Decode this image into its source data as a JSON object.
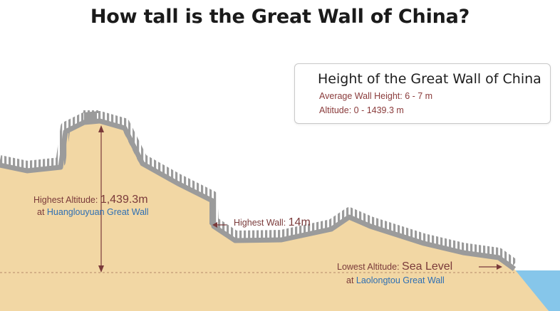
{
  "title": "How tall is the Great Wall of China?",
  "info_box": {
    "title": "Height of the Great Wall of China",
    "average_wall_height": "Average Wall Height: 6 - 7 m",
    "altitude_range": "Altitude: 0 - 1439.3 m"
  },
  "labels": {
    "highest_altitude": {
      "prefix": "Highest Altitude: ",
      "value": "1,439.3m",
      "location_prefix": "at ",
      "location": "Huanglouyuan Great Wall"
    },
    "highest_wall": {
      "prefix": "Highest Wall: ",
      "value": "14m"
    },
    "lowest_altitude": {
      "prefix": "Lowest Altitude: ",
      "value": "Sea Level",
      "location_prefix": "at ",
      "location": "Laolongtou Great Wall"
    }
  },
  "colors": {
    "land": "#f2d7a4",
    "wall": "#9b9b9b",
    "sea": "#86c6ea",
    "arrow": "#7a3a3a",
    "place_text": "#2e6fb3"
  }
}
